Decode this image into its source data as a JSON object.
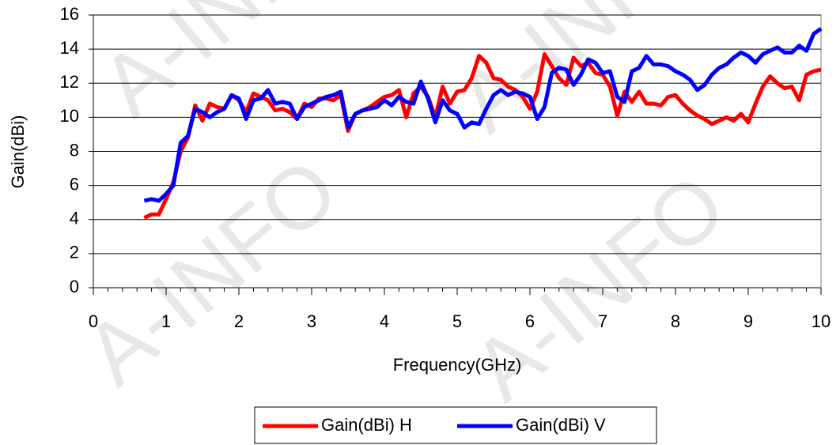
{
  "chart_data": {
    "type": "line",
    "watermark": "A-INFO",
    "x_label": "Frequency(GHz)",
    "y_label": "Gain(dBi)",
    "x": [
      0.7,
      0.8,
      0.9,
      1.0,
      1.1,
      1.2,
      1.3,
      1.4,
      1.5,
      1.6,
      1.7,
      1.8,
      1.9,
      2.0,
      2.1,
      2.2,
      2.3,
      2.4,
      2.5,
      2.6,
      2.7,
      2.8,
      2.9,
      3.0,
      3.1,
      3.2,
      3.3,
      3.4,
      3.5,
      3.6,
      3.7,
      3.8,
      3.9,
      4.0,
      4.1,
      4.2,
      4.3,
      4.4,
      4.5,
      4.6,
      4.7,
      4.8,
      4.9,
      5.0,
      5.1,
      5.2,
      5.3,
      5.4,
      5.5,
      5.6,
      5.7,
      5.8,
      5.9,
      6.0,
      6.1,
      6.2,
      6.3,
      6.4,
      6.5,
      6.6,
      6.7,
      6.8,
      6.9,
      7.0,
      7.1,
      7.2,
      7.3,
      7.4,
      7.5,
      7.6,
      7.7,
      7.8,
      7.9,
      8.0,
      8.1,
      8.2,
      8.3,
      8.4,
      8.5,
      8.6,
      8.7,
      8.8,
      8.9,
      9.0,
      9.1,
      9.2,
      9.3,
      9.4,
      9.5,
      9.6,
      9.7,
      9.8,
      9.9,
      10.0
    ],
    "series": [
      {
        "name": "Gain(dBi) H",
        "color": "#ff0000",
        "values": [
          4.1,
          4.3,
          4.3,
          5.2,
          6.2,
          8.0,
          8.8,
          10.7,
          9.8,
          10.8,
          10.6,
          10.5,
          11.3,
          11.0,
          10.3,
          11.4,
          11.2,
          11.0,
          10.4,
          10.5,
          10.3,
          9.9,
          10.8,
          10.6,
          11.1,
          11.1,
          11.0,
          11.3,
          9.2,
          10.2,
          10.4,
          10.6,
          10.9,
          11.2,
          11.3,
          11.6,
          10.0,
          11.4,
          11.8,
          11.2,
          10.0,
          11.8,
          10.8,
          11.5,
          11.6,
          12.3,
          13.6,
          13.2,
          12.3,
          12.2,
          11.8,
          11.6,
          11.2,
          10.5,
          11.5,
          13.7,
          13.0,
          12.3,
          11.9,
          13.5,
          13.0,
          13.2,
          12.6,
          12.5,
          11.8,
          10.1,
          11.5,
          10.9,
          11.5,
          10.8,
          10.8,
          10.7,
          11.2,
          11.3,
          10.8,
          10.4,
          10.1,
          9.9,
          9.6,
          9.8,
          10.0,
          9.8,
          10.2,
          9.7,
          10.8,
          11.8,
          12.4,
          12.0,
          11.7,
          11.8,
          11.0,
          12.5,
          12.7,
          12.8
        ]
      },
      {
        "name": "Gain(dBi) V",
        "color": "#0000ff",
        "values": [
          5.1,
          5.2,
          5.1,
          5.5,
          6.0,
          8.5,
          8.9,
          10.5,
          10.3,
          10.0,
          10.3,
          10.5,
          11.3,
          11.1,
          9.9,
          11.0,
          11.1,
          11.6,
          10.8,
          10.9,
          10.8,
          9.9,
          10.6,
          10.8,
          11.0,
          11.2,
          11.3,
          11.5,
          9.4,
          10.2,
          10.4,
          10.5,
          10.6,
          11.0,
          10.7,
          11.2,
          10.9,
          10.8,
          12.1,
          11.1,
          9.7,
          11.0,
          10.4,
          10.2,
          9.4,
          9.7,
          9.6,
          10.5,
          11.3,
          11.6,
          11.3,
          11.5,
          11.4,
          11.2,
          9.9,
          10.6,
          12.6,
          12.9,
          12.8,
          11.9,
          12.5,
          13.4,
          13.2,
          12.6,
          12.7,
          11.2,
          10.9,
          12.7,
          12.9,
          13.6,
          13.1,
          13.1,
          13.0,
          12.7,
          12.5,
          12.2,
          11.6,
          11.9,
          12.5,
          12.9,
          13.1,
          13.5,
          13.8,
          13.6,
          13.2,
          13.7,
          13.9,
          14.1,
          13.8,
          13.8,
          14.2,
          13.9,
          14.9,
          15.2
        ]
      }
    ],
    "xlim": [
      0,
      10
    ],
    "xticks": [
      0,
      1,
      2,
      3,
      4,
      5,
      6,
      7,
      8,
      9,
      10
    ],
    "ylim": [
      0,
      16
    ],
    "yticks": [
      0,
      2,
      4,
      6,
      8,
      10,
      12,
      14,
      16
    ],
    "grid": true,
    "legend": "bottom"
  }
}
